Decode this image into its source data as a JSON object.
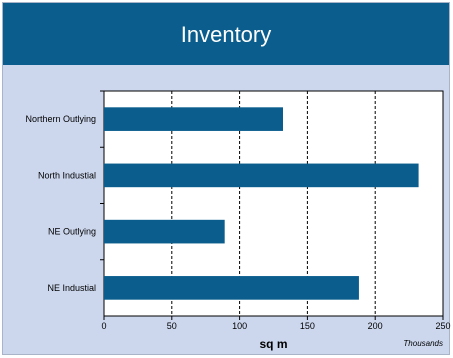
{
  "chart_data": {
    "type": "bar",
    "orientation": "horizontal",
    "title": "Inventory",
    "categories": [
      "Northern Outlying",
      "North Industial",
      "NE Outlying",
      "NE Industial"
    ],
    "values": [
      132,
      232,
      89,
      188
    ],
    "xlabel": "sq m",
    "x_units_note": "Thousands",
    "xlim": [
      0,
      250
    ],
    "xticks": [
      0,
      50,
      100,
      150,
      200,
      250
    ],
    "grid": "vertical dashed",
    "colors": {
      "bar": "#0a5d8c",
      "header": "#0a5d8c",
      "background": "#ccd7ee",
      "plot": "#ffffff"
    }
  }
}
